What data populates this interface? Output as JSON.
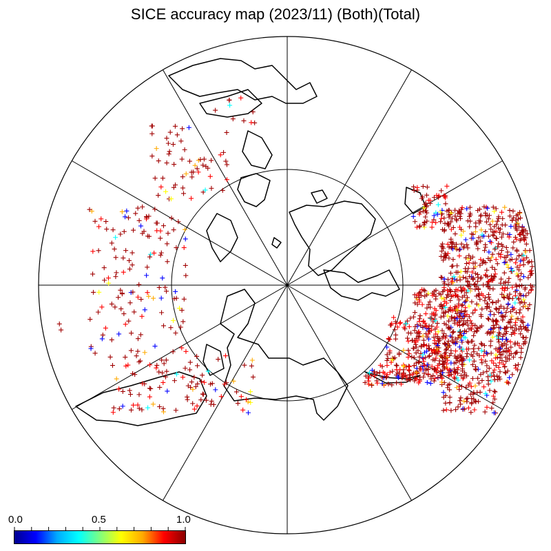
{
  "title": "SICE accuracy map (2023/11) (Both)(Total)",
  "colorbar": {
    "min_label": "0.0",
    "mid_label": "0.5",
    "max_label": "1.0",
    "colors": [
      "#00008f",
      "#0000ff",
      "#00aaff",
      "#00ffff",
      "#7fff7f",
      "#ffff00",
      "#ffaa00",
      "#ff0000",
      "#8b0000"
    ]
  },
  "map": {
    "projection": "polar-stereographic-north",
    "meridians_count": 12,
    "inner_circle_present": true,
    "marker_symbol": "+",
    "dominant_marker_color": "#a00000",
    "coastline_color": "#000000"
  }
}
